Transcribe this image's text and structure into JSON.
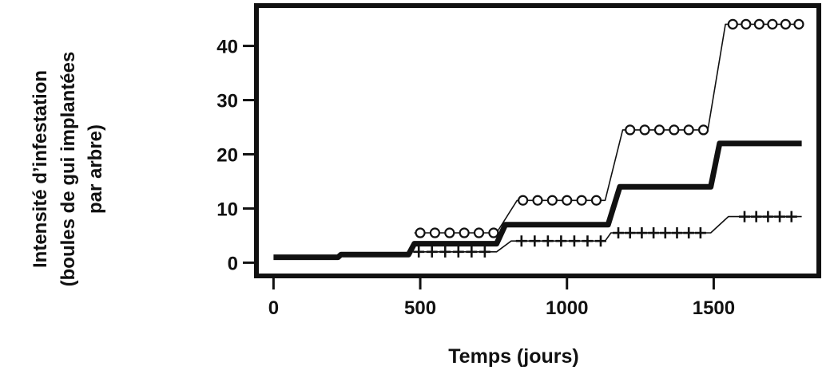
{
  "chart_data": {
    "type": "line",
    "title": "",
    "xlabel": "Temps (jours)",
    "ylabel_lines": [
      "Intensité d’infestation",
      "(boules de gui implantées",
      "par arbre)"
    ],
    "xlim": [
      -50,
      1850
    ],
    "ylim": [
      -2,
      47
    ],
    "x_ticks": [
      0,
      500,
      1000,
      1500
    ],
    "y_ticks": [
      0,
      10,
      20,
      30,
      40
    ],
    "grid": false,
    "legend": "none",
    "series": [
      {
        "style": "thick-solid",
        "color": "#111111",
        "points": [
          [
            0,
            1
          ],
          [
            220,
            1
          ],
          [
            230,
            1.5
          ],
          [
            460,
            1.5
          ],
          [
            480,
            3.5
          ],
          [
            760,
            3.5
          ],
          [
            790,
            7
          ],
          [
            1140,
            7
          ],
          [
            1180,
            14
          ],
          [
            1490,
            14
          ],
          [
            1520,
            22
          ],
          [
            1800,
            22
          ]
        ]
      },
      {
        "style": "circle-markers",
        "color": "#111111",
        "points": [
          [
            480,
            5.5
          ],
          [
            760,
            5.5
          ],
          [
            830,
            11.5
          ],
          [
            1130,
            11.5
          ],
          [
            1190,
            24.5
          ],
          [
            1480,
            24.5
          ],
          [
            1540,
            44
          ],
          [
            1800,
            44
          ]
        ],
        "marker_x": [
          500,
          550,
          600,
          650,
          700,
          750,
          850,
          900,
          950,
          1000,
          1050,
          1100,
          1215,
          1265,
          1315,
          1365,
          1415,
          1465,
          1565,
          1610,
          1655,
          1700,
          1745,
          1790
        ]
      },
      {
        "style": "plus-markers",
        "color": "#111111",
        "points": [
          [
            480,
            2
          ],
          [
            760,
            2
          ],
          [
            810,
            4
          ],
          [
            1130,
            4
          ],
          [
            1150,
            5.5
          ],
          [
            1490,
            5.5
          ],
          [
            1550,
            8.5
          ],
          [
            1800,
            8.5
          ]
        ],
        "marker_x": [
          495,
          540,
          585,
          630,
          675,
          720,
          845,
          890,
          935,
          980,
          1025,
          1070,
          1115,
          1175,
          1215,
          1255,
          1295,
          1335,
          1375,
          1415,
          1455,
          1605,
          1645,
          1685,
          1725,
          1765
        ]
      }
    ]
  }
}
